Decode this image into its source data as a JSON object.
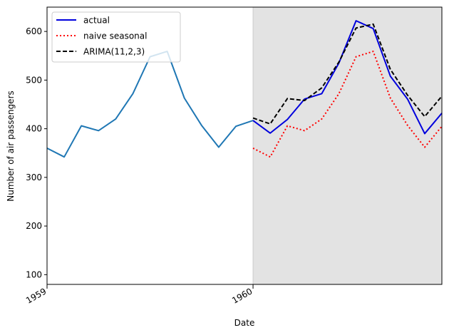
{
  "chart_data": {
    "type": "line",
    "title": "",
    "xlabel": "Date",
    "ylabel": "Number of air passengers",
    "xlim": [
      "1959-01",
      "1960-12"
    ],
    "ylim": [
      80,
      650
    ],
    "x_ticks": [
      {
        "label": "1959",
        "value": "1959-01"
      },
      {
        "label": "1960",
        "value": "1960-01"
      }
    ],
    "y_ticks": [
      100,
      200,
      300,
      400,
      500,
      600
    ],
    "shaded_region": {
      "from": "1960-01",
      "to": "1960-12",
      "color": "#e3e3e3"
    },
    "grid": false,
    "legend_position": "top-left",
    "series": [
      {
        "name": "",
        "color": "#1f77b4",
        "style": "solid",
        "x": [
          "1959-01",
          "1959-02",
          "1959-03",
          "1959-04",
          "1959-05",
          "1959-06",
          "1959-07",
          "1959-08",
          "1959-09",
          "1959-10",
          "1959-11",
          "1959-12",
          "1960-01"
        ],
        "values": [
          360,
          342,
          406,
          396,
          420,
          472,
          548,
          559,
          463,
          407,
          362,
          405,
          417
        ]
      },
      {
        "name": "actual",
        "color": "#0000dd",
        "style": "solid",
        "x": [
          "1960-01",
          "1960-02",
          "1960-03",
          "1960-04",
          "1960-05",
          "1960-06",
          "1960-07",
          "1960-08",
          "1960-09",
          "1960-10",
          "1960-11",
          "1960-12"
        ],
        "values": [
          417,
          391,
          419,
          461,
          472,
          535,
          622,
          606,
          508,
          461,
          390,
          432
        ]
      },
      {
        "name": "naive seasonal",
        "color": "#ff0000",
        "style": "dotted",
        "x": [
          "1960-01",
          "1960-02",
          "1960-03",
          "1960-04",
          "1960-05",
          "1960-06",
          "1960-07",
          "1960-08",
          "1960-09",
          "1960-10",
          "1960-11",
          "1960-12"
        ],
        "values": [
          360,
          342,
          406,
          396,
          420,
          472,
          548,
          559,
          463,
          407,
          362,
          405
        ]
      },
      {
        "name": "ARIMA(11,2,3)",
        "color": "#000000",
        "style": "dashed",
        "x": [
          "1960-01",
          "1960-02",
          "1960-03",
          "1960-04",
          "1960-05",
          "1960-06",
          "1960-07",
          "1960-08",
          "1960-09",
          "1960-10",
          "1960-11",
          "1960-12"
        ],
        "values": [
          422,
          410,
          462,
          458,
          484,
          537,
          607,
          615,
          522,
          469,
          425,
          467
        ]
      }
    ]
  }
}
